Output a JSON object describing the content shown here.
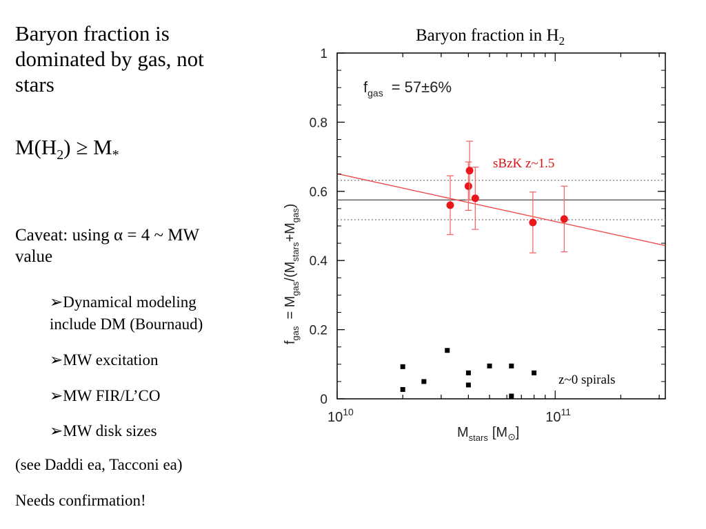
{
  "slide": {
    "heading": "Baryon fraction is dominated by gas, not stars",
    "mh2_main": "M(H",
    "mh2_sub": "2",
    "mh2_rest": ") ≥ M",
    "mh2_star": "*",
    "caveat": "Caveat: using  α = 4 ~ MW value",
    "bullets": [
      "➢Dynamical modeling",
      "include DM (Bournaud)",
      "➢MW excitation",
      "➢MW FIR/L’CO",
      "➢MW disk sizes"
    ],
    "see_also": "(see Daddi ea, Tacconi ea)",
    "needs": "Needs confirmation!"
  },
  "chart_data": {
    "type": "scatter",
    "title_main": "Baryon fraction in H",
    "title_sub": "2",
    "xlabel": "M",
    "xlabel_sub": "stars",
    "xlabel_unit": "[M",
    "xlabel_unit_sub": "⊙",
    "xlabel_unit_end": "]",
    "ylabel": "f",
    "ylabel_sub": "gas",
    "ylabel_rest": "= M",
    "ylabel_sub2": "gas",
    "ylabel_rest2": "/(M",
    "ylabel_sub3": "stars",
    "ylabel_rest3": "+M",
    "ylabel_sub4": "gas",
    "ylabel_end": ")",
    "xscale": "log",
    "xlim": [
      10000000000.0,
      320000000000.0
    ],
    "ylim": [
      0,
      1
    ],
    "x_ticks": [
      {
        "value": 10000000000.0,
        "base": "10",
        "exp": "10"
      },
      {
        "value": 100000000000.0,
        "base": "10",
        "exp": "11"
      }
    ],
    "y_ticks": [
      {
        "value": 0,
        "label": "0"
      },
      {
        "value": 0.2,
        "label": "0.2"
      },
      {
        "value": 0.4,
        "label": "0.4"
      },
      {
        "value": 0.6,
        "label": "0.6"
      },
      {
        "value": 0.8,
        "label": "0.8"
      },
      {
        "value": 1,
        "label": "1"
      }
    ],
    "annotation_fgas": {
      "main": "f",
      "sub": "gas",
      "rest": "= 57±6%"
    },
    "series": [
      {
        "name": "sBzK z~1.5",
        "color": "#e8171c",
        "marker": "circle",
        "points": [
          {
            "x": 33000000000.0,
            "y": 0.56,
            "err": 0.085
          },
          {
            "x": 40000000000.0,
            "y": 0.615,
            "err": 0.07
          },
          {
            "x": 40500000000.0,
            "y": 0.66,
            "err": 0.085
          },
          {
            "x": 43000000000.0,
            "y": 0.58,
            "err": 0.09
          },
          {
            "x": 79000000000.0,
            "y": 0.51,
            "err": 0.088
          },
          {
            "x": 110000000000.0,
            "y": 0.52,
            "err": 0.095
          }
        ]
      },
      {
        "name": "z~0 spirals",
        "color": "#000000",
        "marker": "square",
        "points": [
          {
            "x": 20000000000.0,
            "y": 0.093
          },
          {
            "x": 20000000000.0,
            "y": 0.027
          },
          {
            "x": 25000000000.0,
            "y": 0.05
          },
          {
            "x": 32000000000.0,
            "y": 0.14
          },
          {
            "x": 40000000000.0,
            "y": 0.075
          },
          {
            "x": 40000000000.0,
            "y": 0.04
          },
          {
            "x": 50000000000.0,
            "y": 0.095
          },
          {
            "x": 63000000000.0,
            "y": 0.095
          },
          {
            "x": 63000000000.0,
            "y": 0.008
          },
          {
            "x": 80000000000.0,
            "y": 0.075
          }
        ]
      }
    ],
    "hlines": [
      {
        "y": 0.575,
        "style": "solid",
        "color": "#555555"
      },
      {
        "y": 0.632,
        "style": "dotted",
        "color": "#777777"
      },
      {
        "y": 0.518,
        "style": "dotted",
        "color": "#777777"
      }
    ],
    "fit_line": {
      "color": "#f04a4a",
      "x": [
        10000000000.0,
        320000000000.0
      ],
      "y": [
        0.651,
        0.443
      ]
    },
    "colors": {
      "red": "#e8171c",
      "fit": "#f04a4a",
      "red_label": "#dd1111"
    }
  }
}
